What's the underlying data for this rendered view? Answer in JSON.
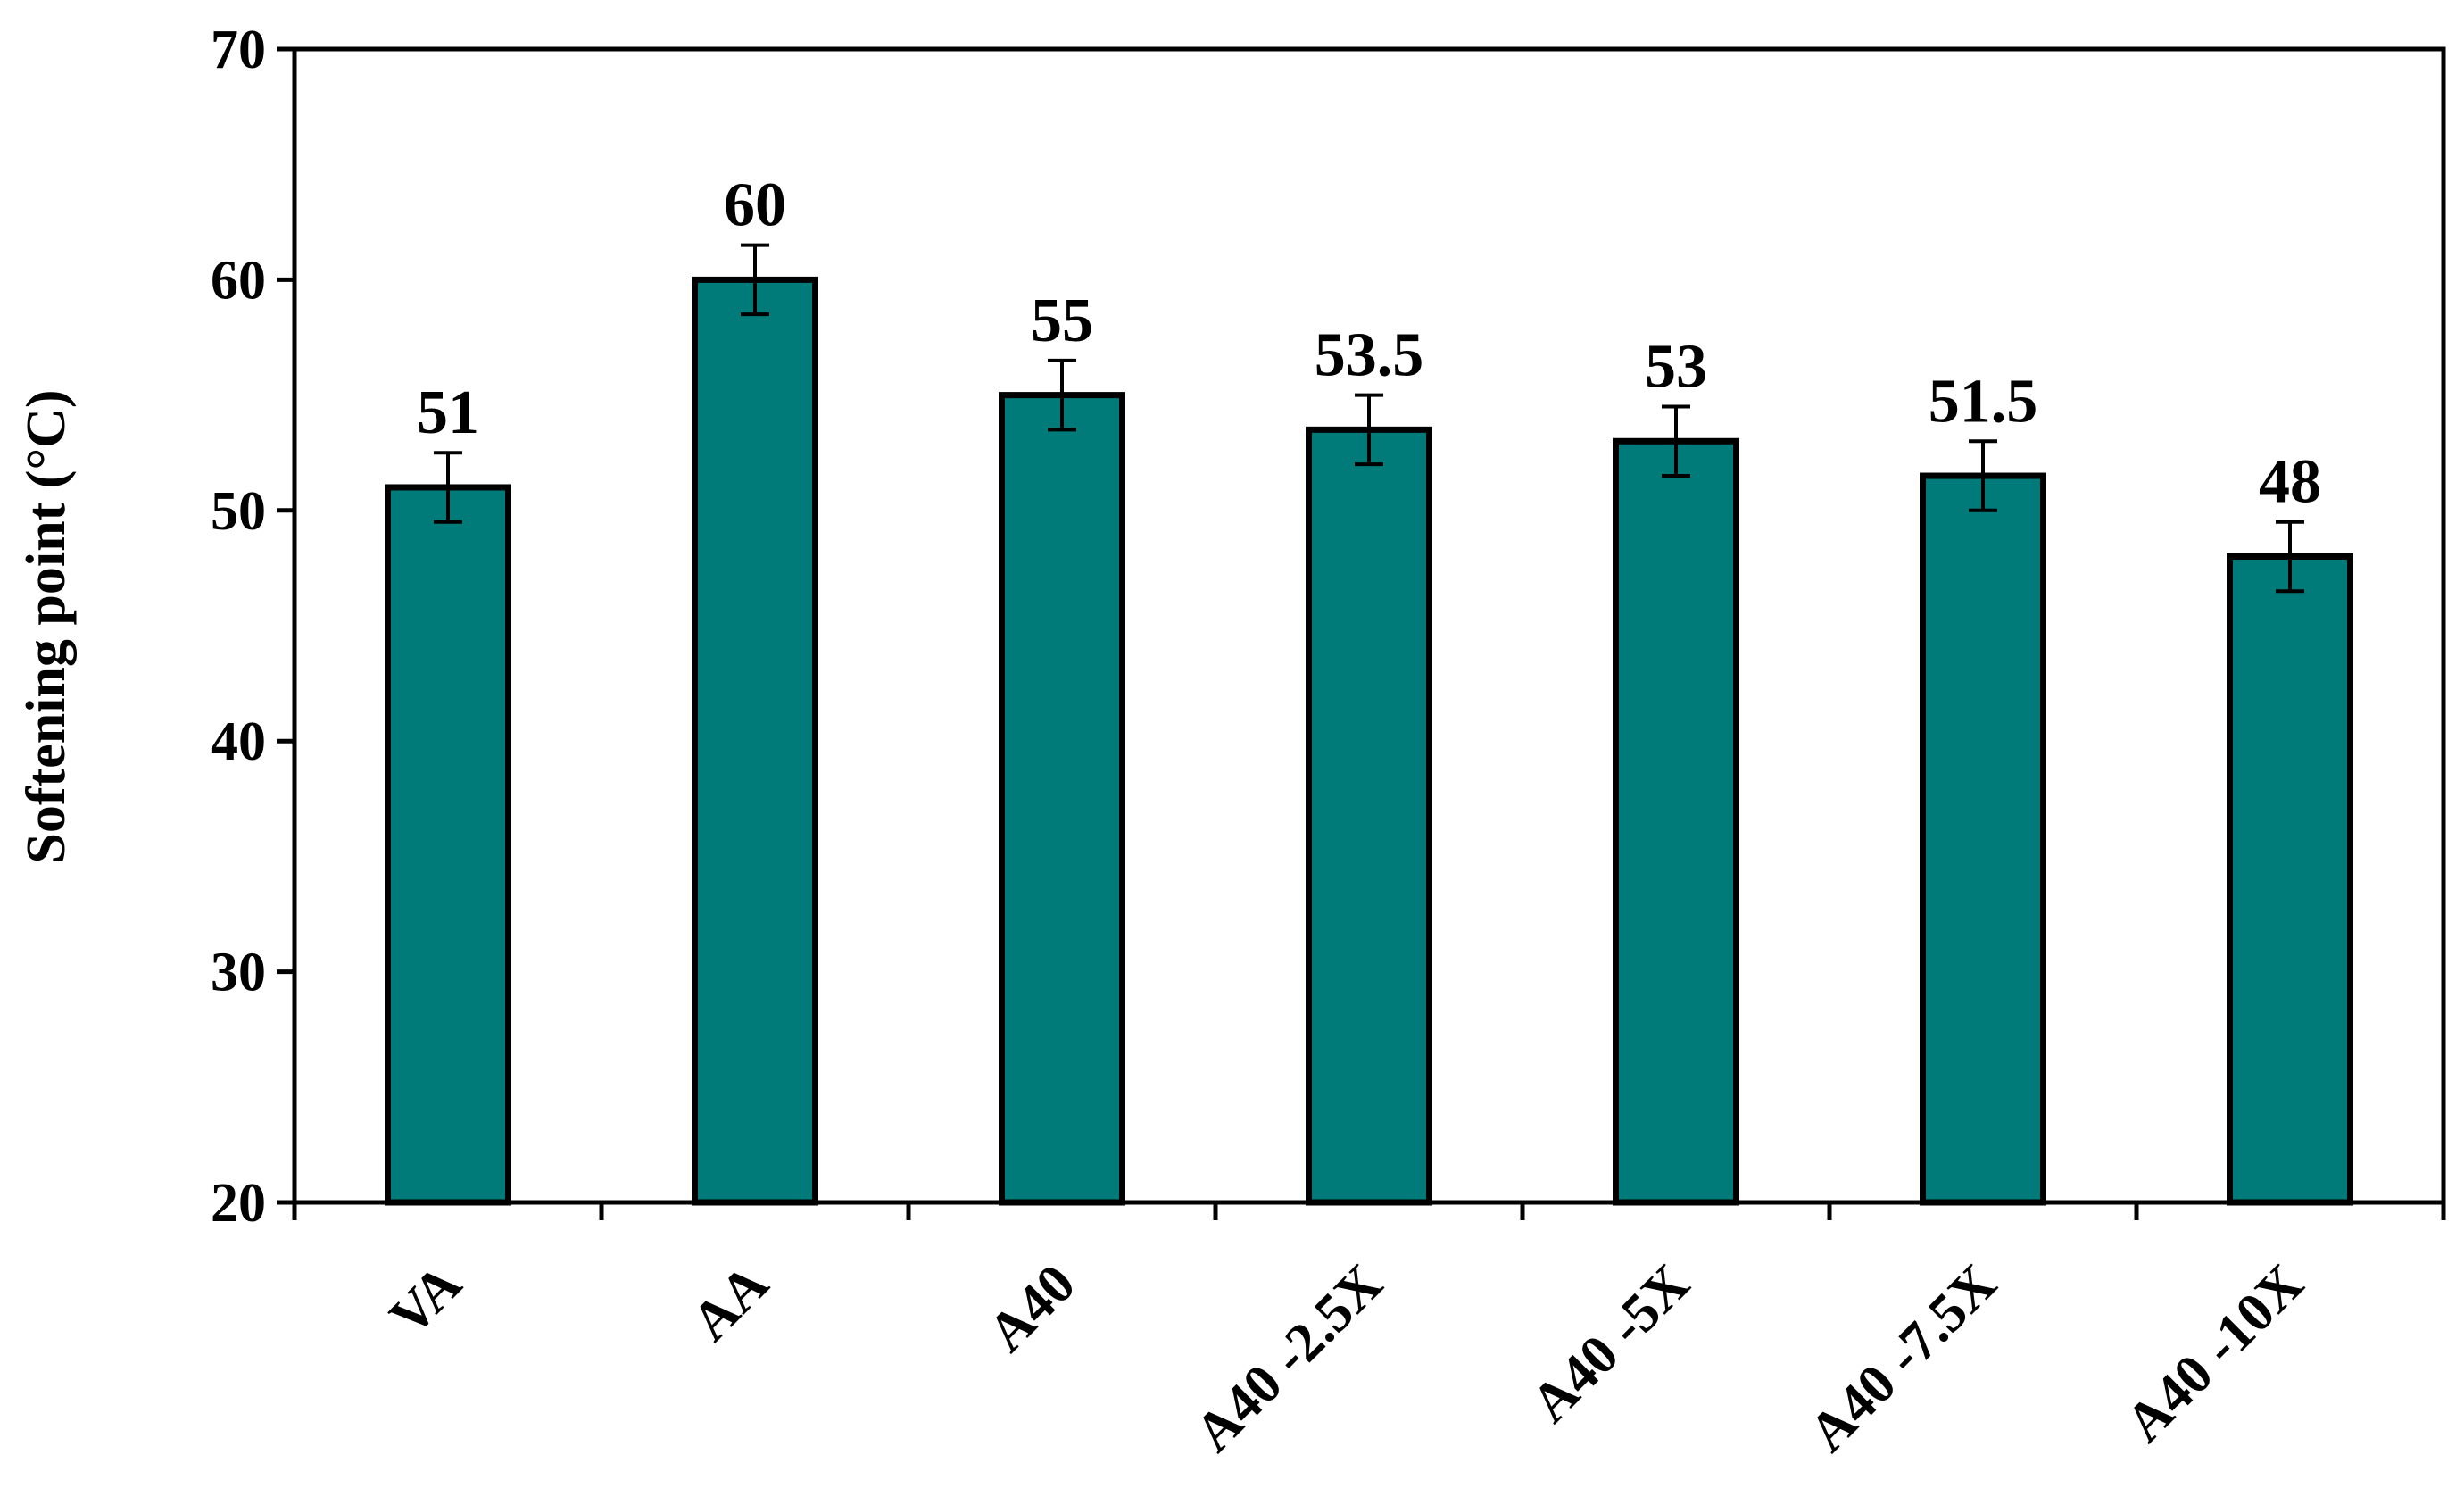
{
  "chart_data": {
    "type": "bar",
    "title": "",
    "xlabel": "",
    "ylabel": "Softening point (°C)",
    "categories": [
      "VA",
      "AA",
      "A40",
      "A40 -2.5X",
      "A40 -5X",
      "A40 -7.5X",
      "A40 -10X"
    ],
    "values": [
      51,
      60,
      55,
      53.5,
      53,
      51.5,
      48
    ],
    "data_labels": [
      "51",
      "60",
      "55",
      "53.5",
      "53",
      "51.5",
      "48"
    ],
    "error": [
      1.5,
      1.5,
      1.5,
      1.5,
      1.5,
      1.5,
      1.5
    ],
    "ylim": [
      20,
      70
    ],
    "yticks": [
      20,
      30,
      40,
      50,
      60,
      70
    ],
    "ytick_labels": [
      "20",
      "30",
      "40",
      "50",
      "60",
      "70"
    ],
    "grid": false,
    "legend": "none",
    "colors": {
      "bar_fill": "#007b79",
      "bar_stroke": "#000000",
      "axis": "#000000"
    }
  }
}
